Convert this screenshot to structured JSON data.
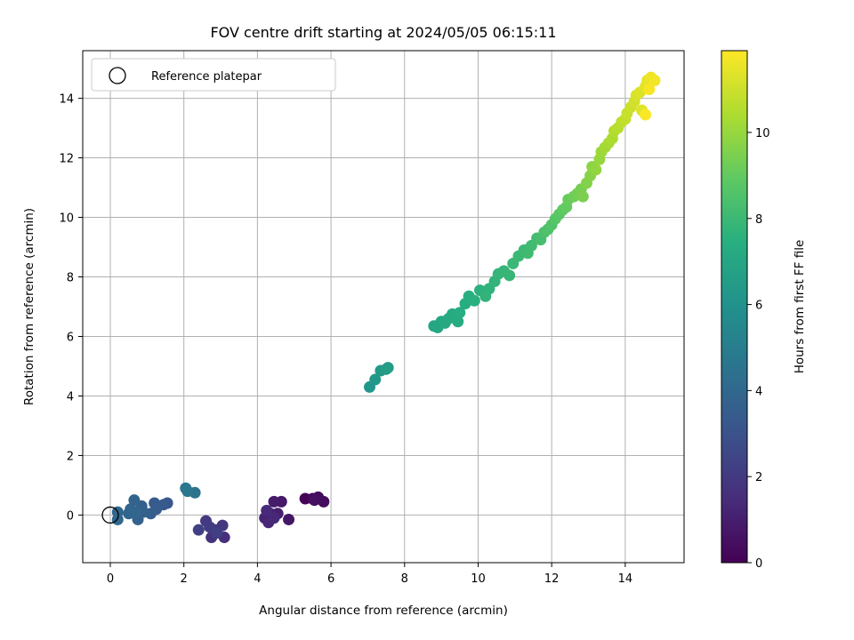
{
  "chart_data": {
    "type": "scatter",
    "title": "FOV centre drift starting at 2024/05/05 06:15:11",
    "xlabel": "Angular distance from reference (arcmin)",
    "ylabel": "Rotation from reference (arcmin)",
    "xlim": [
      -0.75,
      15.6
    ],
    "ylim": [
      -1.6,
      15.6
    ],
    "xticks": [
      0,
      2,
      4,
      6,
      8,
      10,
      12,
      14
    ],
    "yticks": [
      0,
      2,
      4,
      6,
      8,
      10,
      12,
      14
    ],
    "grid": true,
    "legend": {
      "placement": "top-left",
      "entries": [
        "Reference platepar"
      ]
    },
    "reference_point": {
      "x": 0,
      "y": 0
    },
    "colorbar": {
      "label": "Hours from first FF file",
      "colormap": "viridis",
      "range": [
        0,
        11.9
      ],
      "ticks": [
        0,
        2,
        4,
        6,
        8,
        10
      ]
    },
    "points": [
      [
        5.3,
        0.55,
        0.1
      ],
      [
        5.5,
        0.55,
        0.2
      ],
      [
        5.65,
        0.6,
        0.3
      ],
      [
        5.8,
        0.45,
        0.4
      ],
      [
        5.55,
        0.5,
        0.5
      ],
      [
        4.85,
        -0.15,
        0.7
      ],
      [
        4.65,
        0.45,
        0.8
      ],
      [
        4.45,
        0.45,
        0.9
      ],
      [
        4.55,
        0.05,
        1.0
      ],
      [
        4.35,
        0.05,
        1.1
      ],
      [
        4.2,
        -0.1,
        1.2
      ],
      [
        4.3,
        -0.25,
        1.3
      ],
      [
        4.45,
        -0.1,
        1.35
      ],
      [
        4.25,
        0.15,
        1.4
      ],
      [
        3.1,
        -0.75,
        1.6
      ],
      [
        2.75,
        -0.75,
        1.7
      ],
      [
        2.85,
        -0.5,
        1.8
      ],
      [
        3.05,
        -0.35,
        1.9
      ],
      [
        2.6,
        -0.2,
        2.0
      ],
      [
        2.7,
        -0.4,
        2.1
      ],
      [
        2.9,
        -0.6,
        2.2
      ],
      [
        2.4,
        -0.5,
        2.3
      ],
      [
        1.55,
        0.4,
        3.2
      ],
      [
        1.45,
        0.35,
        3.3
      ],
      [
        1.2,
        0.4,
        3.4
      ],
      [
        1.25,
        0.2,
        3.5
      ],
      [
        1.1,
        0.05,
        3.55
      ],
      [
        0.85,
        0.3,
        3.6
      ],
      [
        0.9,
        0.1,
        3.65
      ],
      [
        0.75,
        -0.15,
        3.7
      ],
      [
        0.65,
        0.5,
        3.75
      ],
      [
        0.55,
        0.2,
        3.8
      ],
      [
        0.5,
        0.05,
        3.85
      ],
      [
        0.7,
        0.1,
        3.9
      ],
      [
        0.2,
        0.1,
        3.95
      ],
      [
        0.2,
        -0.15,
        4.0
      ],
      [
        2.3,
        0.75,
        4.5
      ],
      [
        2.05,
        0.9,
        4.6
      ],
      [
        2.1,
        0.8,
        4.7
      ],
      [
        7.05,
        4.3,
        6.2
      ],
      [
        7.2,
        4.55,
        6.3
      ],
      [
        7.35,
        4.85,
        6.4
      ],
      [
        7.5,
        4.9,
        6.5
      ],
      [
        7.55,
        4.95,
        6.55
      ],
      [
        8.8,
        6.35,
        7.0
      ],
      [
        8.9,
        6.3,
        7.05
      ],
      [
        9.0,
        6.5,
        7.1
      ],
      [
        9.1,
        6.45,
        7.15
      ],
      [
        9.2,
        6.6,
        7.2
      ],
      [
        9.3,
        6.75,
        7.25
      ],
      [
        9.45,
        6.5,
        7.3
      ],
      [
        9.5,
        6.8,
        7.35
      ],
      [
        9.65,
        7.1,
        7.4
      ],
      [
        9.75,
        7.35,
        7.45
      ],
      [
        9.9,
        7.2,
        7.5
      ],
      [
        10.05,
        7.55,
        7.55
      ],
      [
        10.2,
        7.5,
        7.6
      ],
      [
        10.3,
        7.6,
        7.65
      ],
      [
        10.2,
        7.35,
        7.7
      ],
      [
        10.45,
        7.85,
        7.75
      ],
      [
        10.55,
        8.1,
        7.8
      ],
      [
        10.7,
        8.2,
        7.85
      ],
      [
        10.85,
        8.05,
        7.9
      ],
      [
        10.95,
        8.45,
        7.95
      ],
      [
        11.1,
        8.7,
        8.0
      ],
      [
        11.25,
        8.9,
        8.05
      ],
      [
        11.35,
        8.8,
        8.1
      ],
      [
        11.45,
        9.05,
        8.15
      ],
      [
        11.6,
        9.3,
        8.2
      ],
      [
        11.7,
        9.25,
        8.3
      ],
      [
        11.8,
        9.5,
        8.4
      ],
      [
        11.9,
        9.6,
        8.5
      ],
      [
        12.0,
        9.75,
        8.6
      ],
      [
        12.1,
        9.95,
        8.7
      ],
      [
        12.2,
        10.1,
        8.8
      ],
      [
        12.3,
        10.25,
        8.9
      ],
      [
        12.4,
        10.35,
        9.0
      ],
      [
        12.45,
        10.6,
        9.1
      ],
      [
        12.6,
        10.7,
        9.2
      ],
      [
        12.7,
        10.8,
        9.3
      ],
      [
        12.8,
        10.95,
        9.4
      ],
      [
        12.85,
        10.7,
        9.5
      ],
      [
        12.95,
        11.15,
        9.6
      ],
      [
        13.05,
        11.4,
        9.7
      ],
      [
        13.1,
        11.7,
        9.8
      ],
      [
        13.2,
        11.6,
        9.9
      ],
      [
        13.3,
        11.95,
        10.0
      ],
      [
        13.35,
        12.2,
        10.1
      ],
      [
        13.45,
        12.35,
        10.2
      ],
      [
        13.55,
        12.5,
        10.3
      ],
      [
        13.65,
        12.65,
        10.4
      ],
      [
        13.7,
        12.9,
        10.5
      ],
      [
        13.8,
        13.0,
        10.6
      ],
      [
        13.9,
        13.2,
        10.7
      ],
      [
        14.0,
        13.3,
        10.8
      ],
      [
        14.05,
        13.5,
        10.9
      ],
      [
        14.15,
        13.7,
        11.0
      ],
      [
        14.25,
        13.9,
        11.1
      ],
      [
        14.3,
        14.1,
        11.2
      ],
      [
        14.4,
        14.2,
        11.3
      ],
      [
        14.45,
        13.6,
        11.35
      ],
      [
        14.55,
        14.4,
        11.4
      ],
      [
        14.6,
        14.6,
        11.5
      ],
      [
        14.7,
        14.7,
        11.6
      ],
      [
        14.8,
        14.6,
        11.7
      ],
      [
        14.65,
        14.3,
        11.8
      ],
      [
        14.55,
        13.45,
        11.85
      ]
    ]
  }
}
